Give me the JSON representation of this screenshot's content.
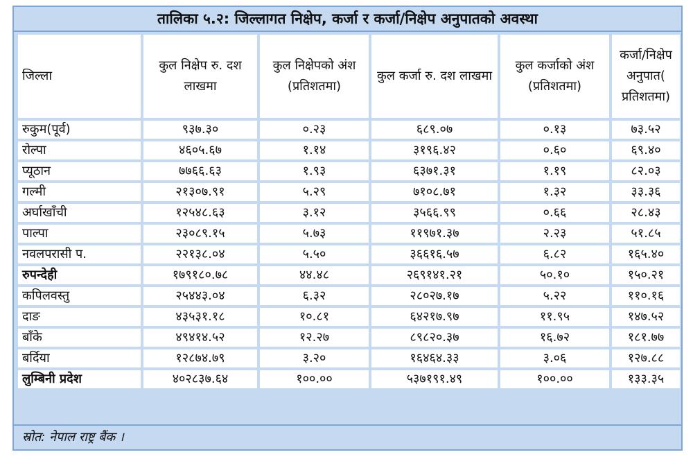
{
  "title": "तालिका ५.२: जिल्लागत निक्षेप, कर्जा र कर्जा/निक्षेप अनुपातको अवस्था",
  "headers": [
    "जिल्ला",
    "कुल निक्षेप रु. दश लाखमा",
    "कुल निक्षेपको अंश (प्रतिशतमा)",
    "कुल कर्जा रु. दश लाखमा",
    "कुल कर्जाको अंश (प्रतिशतमा)",
    "कर्जा/निक्षेप अनुपात( प्रतिशतमा)"
  ],
  "rows": [
    [
      "रुकुम(पूर्व)",
      "९३७.३०",
      "०.२३",
      "६८९.०७",
      "०.१३",
      "७३.५२"
    ],
    [
      "रोल्पा",
      "४६०५.६७",
      "१.१४",
      "३१९६.४२",
      "०.६०",
      "६९.४०"
    ],
    [
      "प्यूठान",
      "७७६६.६३",
      "१.९३",
      "६३७१.३१",
      "१.१९",
      "८२.०३"
    ],
    [
      "गल्मी",
      "२१३०७.९१",
      "५.२९",
      "७१०८.७१",
      "१.३२",
      "३३.३६"
    ],
    [
      "अर्घाखाँची",
      "१२५४८.६३",
      "३.१२",
      "३५६६.९९",
      "०.६६",
      "२८.४३"
    ],
    [
      "पाल्पा",
      "२३०८९.१५",
      "५.७३",
      "११९७१.३७",
      "२.२३",
      "५१.८५"
    ],
    [
      "नवलपरासी प.",
      "२२१३८.०४",
      "५.५०",
      "३६६१६.५७",
      "६.८२",
      "१६५.४०"
    ],
    [
      "रुपन्देही",
      "१७९१८०.७८",
      "४४.४८",
      "२६९१४१.२१",
      "५०.१०",
      "१५०.२१"
    ],
    [
      "कपिलवस्तु",
      "२५४४३.०४",
      "६.३२",
      "२८०२७.१७",
      "५.२२",
      "११०.१६"
    ],
    [
      "दाङ",
      "४३५३१.१८",
      "१०.८१",
      "६४२१७.९७",
      "११.९५",
      "१४७.५२"
    ],
    [
      "बाँके",
      "४९४१४.५२",
      "१२.२७",
      "८९८२०.३७",
      "१६.७२",
      "१८१.७७"
    ],
    [
      "बर्दिया",
      "१२८७४.७९",
      "३.२०",
      "१६४६४.३३",
      "३.०६",
      "१२७.८८"
    ],
    [
      "लुम्बिनी प्रदेश",
      "४०२८३७.६४",
      "१००.००",
      "५३७१९१.४९",
      "१००.००",
      "१३३.३५"
    ]
  ],
  "bold_rows": [
    7,
    12
  ],
  "source": "स्रोत: नेपाल राष्ट्र बैंक ।"
}
